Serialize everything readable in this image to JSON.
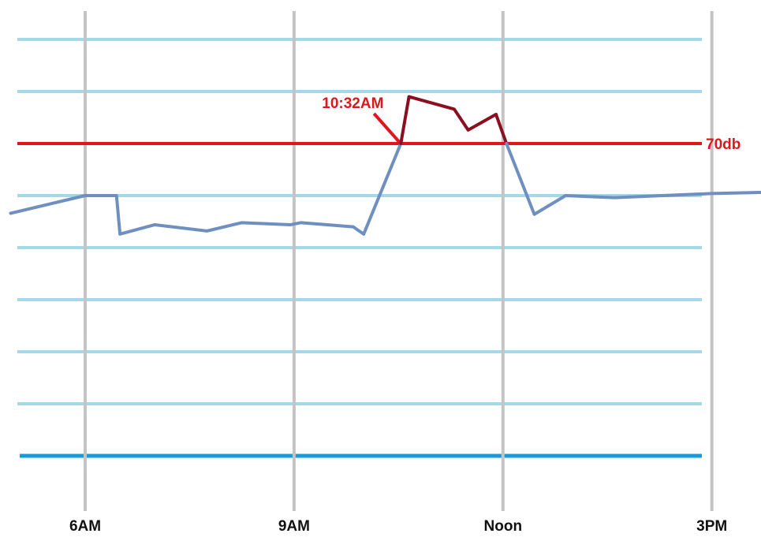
{
  "chart_data": {
    "type": "line",
    "title": "",
    "xlabel": "",
    "ylabel": "",
    "x_ticks": [
      {
        "label": "6AM",
        "hour": 6
      },
      {
        "label": "9AM",
        "hour": 9
      },
      {
        "label": "Noon",
        "hour": 12
      },
      {
        "label": "3PM",
        "hour": 15
      }
    ],
    "y_gridlines": [
      40,
      45,
      50,
      55,
      60,
      65,
      70,
      75,
      80
    ],
    "ylim": [
      37,
      83
    ],
    "xlim": [
      5.0,
      16.0
    ],
    "grid": true,
    "threshold": {
      "value": 70,
      "label": "70db",
      "color": "#e0161e"
    },
    "annotation": {
      "label": "10:32AM",
      "hour": 10.533,
      "value": 70,
      "color": "#e0161e"
    },
    "series": [
      {
        "color_normal": "#6f8fc0",
        "color_above_threshold": "#8a0f1f",
        "points": [
          [
            4.93,
            63.3
          ],
          [
            6.0,
            65.0
          ],
          [
            6.45,
            65.0
          ],
          [
            6.5,
            61.3
          ],
          [
            7.0,
            62.2
          ],
          [
            7.75,
            61.6
          ],
          [
            8.25,
            62.4
          ],
          [
            8.95,
            62.2
          ],
          [
            9.1,
            62.4
          ],
          [
            9.85,
            62.0
          ],
          [
            10.0,
            61.3
          ],
          [
            10.533,
            70.0
          ],
          [
            10.65,
            74.5
          ],
          [
            11.3,
            73.3
          ],
          [
            11.5,
            71.3
          ],
          [
            11.9,
            72.8
          ],
          [
            12.05,
            70.0
          ],
          [
            12.45,
            63.2
          ],
          [
            12.9,
            65.0
          ],
          [
            13.6,
            64.8
          ],
          [
            15.0,
            65.2
          ],
          [
            15.7,
            65.3
          ]
        ]
      }
    ],
    "colors": {
      "grid": "#a3d9e8",
      "vertical_grid": "#c4c4c4",
      "baseline": "#1a9bd7"
    }
  }
}
